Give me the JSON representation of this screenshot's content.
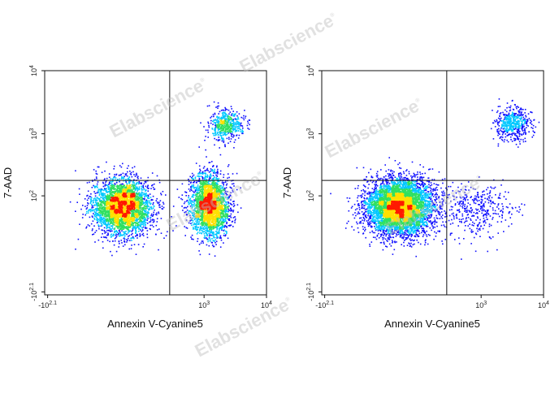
{
  "watermark": {
    "text": "Elabscience",
    "mark": "®"
  },
  "colors": {
    "density_low": "#1010ff",
    "density_mid": "#00c8ff",
    "density_mid2": "#30e060",
    "density_high": "#ffe000",
    "density_peak": "#ff1a00",
    "frame": "#111111"
  },
  "chart_data": [
    {
      "type": "scatter",
      "style": "density flow cytometry dot plot",
      "xlabel": "Annexin V-Cyanine5",
      "ylabel": "7-AAD",
      "x_scale": "biexponential",
      "y_scale": "biexponential",
      "x_ticks": [
        {
          "label": "-10",
          "sup": "2.1",
          "value": -125
        },
        {
          "label": "10",
          "sup": "3",
          "value": 1000
        },
        {
          "label": "10",
          "sup": "4",
          "value": 10000
        }
      ],
      "y_ticks": [
        {
          "label": "-10",
          "sup": "2.1",
          "value": -125
        },
        {
          "label": "10",
          "sup": "2",
          "value": 100
        },
        {
          "label": "10",
          "sup": "3",
          "value": 1000
        },
        {
          "label": "10",
          "sup": "4",
          "value": 10000
        }
      ],
      "quadrant_gates": {
        "x": 280,
        "y": 180
      },
      "populations": [
        {
          "x": 40,
          "y": 65,
          "weight": 0.52,
          "sx": 0.55,
          "sy": 0.5
        },
        {
          "x": 1200,
          "y": 70,
          "weight": 0.4,
          "sx": 0.35,
          "sy": 0.55
        },
        {
          "x": 2200,
          "y": 1400,
          "weight": 0.08,
          "sx": 0.3,
          "sy": 0.28
        }
      ],
      "total_events": 6500
    },
    {
      "type": "scatter",
      "style": "density flow cytometry dot plot",
      "xlabel": "Annexin V-Cyanine5",
      "ylabel": "7-AAD",
      "x_scale": "biexponential",
      "y_scale": "biexponential",
      "x_ticks": [
        {
          "label": "-10",
          "sup": "2.1",
          "value": -125
        },
        {
          "label": "10",
          "sup": "3",
          "value": 1000
        },
        {
          "label": "10",
          "sup": "4",
          "value": 10000
        }
      ],
      "y_ticks": [
        {
          "label": "-10",
          "sup": "2.1",
          "value": -125
        },
        {
          "label": "10",
          "sup": "2",
          "value": 100
        },
        {
          "label": "10",
          "sup": "3",
          "value": 1000
        },
        {
          "label": "10",
          "sup": "4",
          "value": 10000
        }
      ],
      "quadrant_gates": {
        "x": 280,
        "y": 180
      },
      "populations": [
        {
          "x": 40,
          "y": 65,
          "weight": 0.86,
          "sx": 0.6,
          "sy": 0.5
        },
        {
          "x": 800,
          "y": 60,
          "weight": 0.06,
          "sx": 0.7,
          "sy": 0.5
        },
        {
          "x": 3200,
          "y": 1500,
          "weight": 0.08,
          "sx": 0.32,
          "sy": 0.3
        }
      ],
      "total_events": 6500
    }
  ]
}
